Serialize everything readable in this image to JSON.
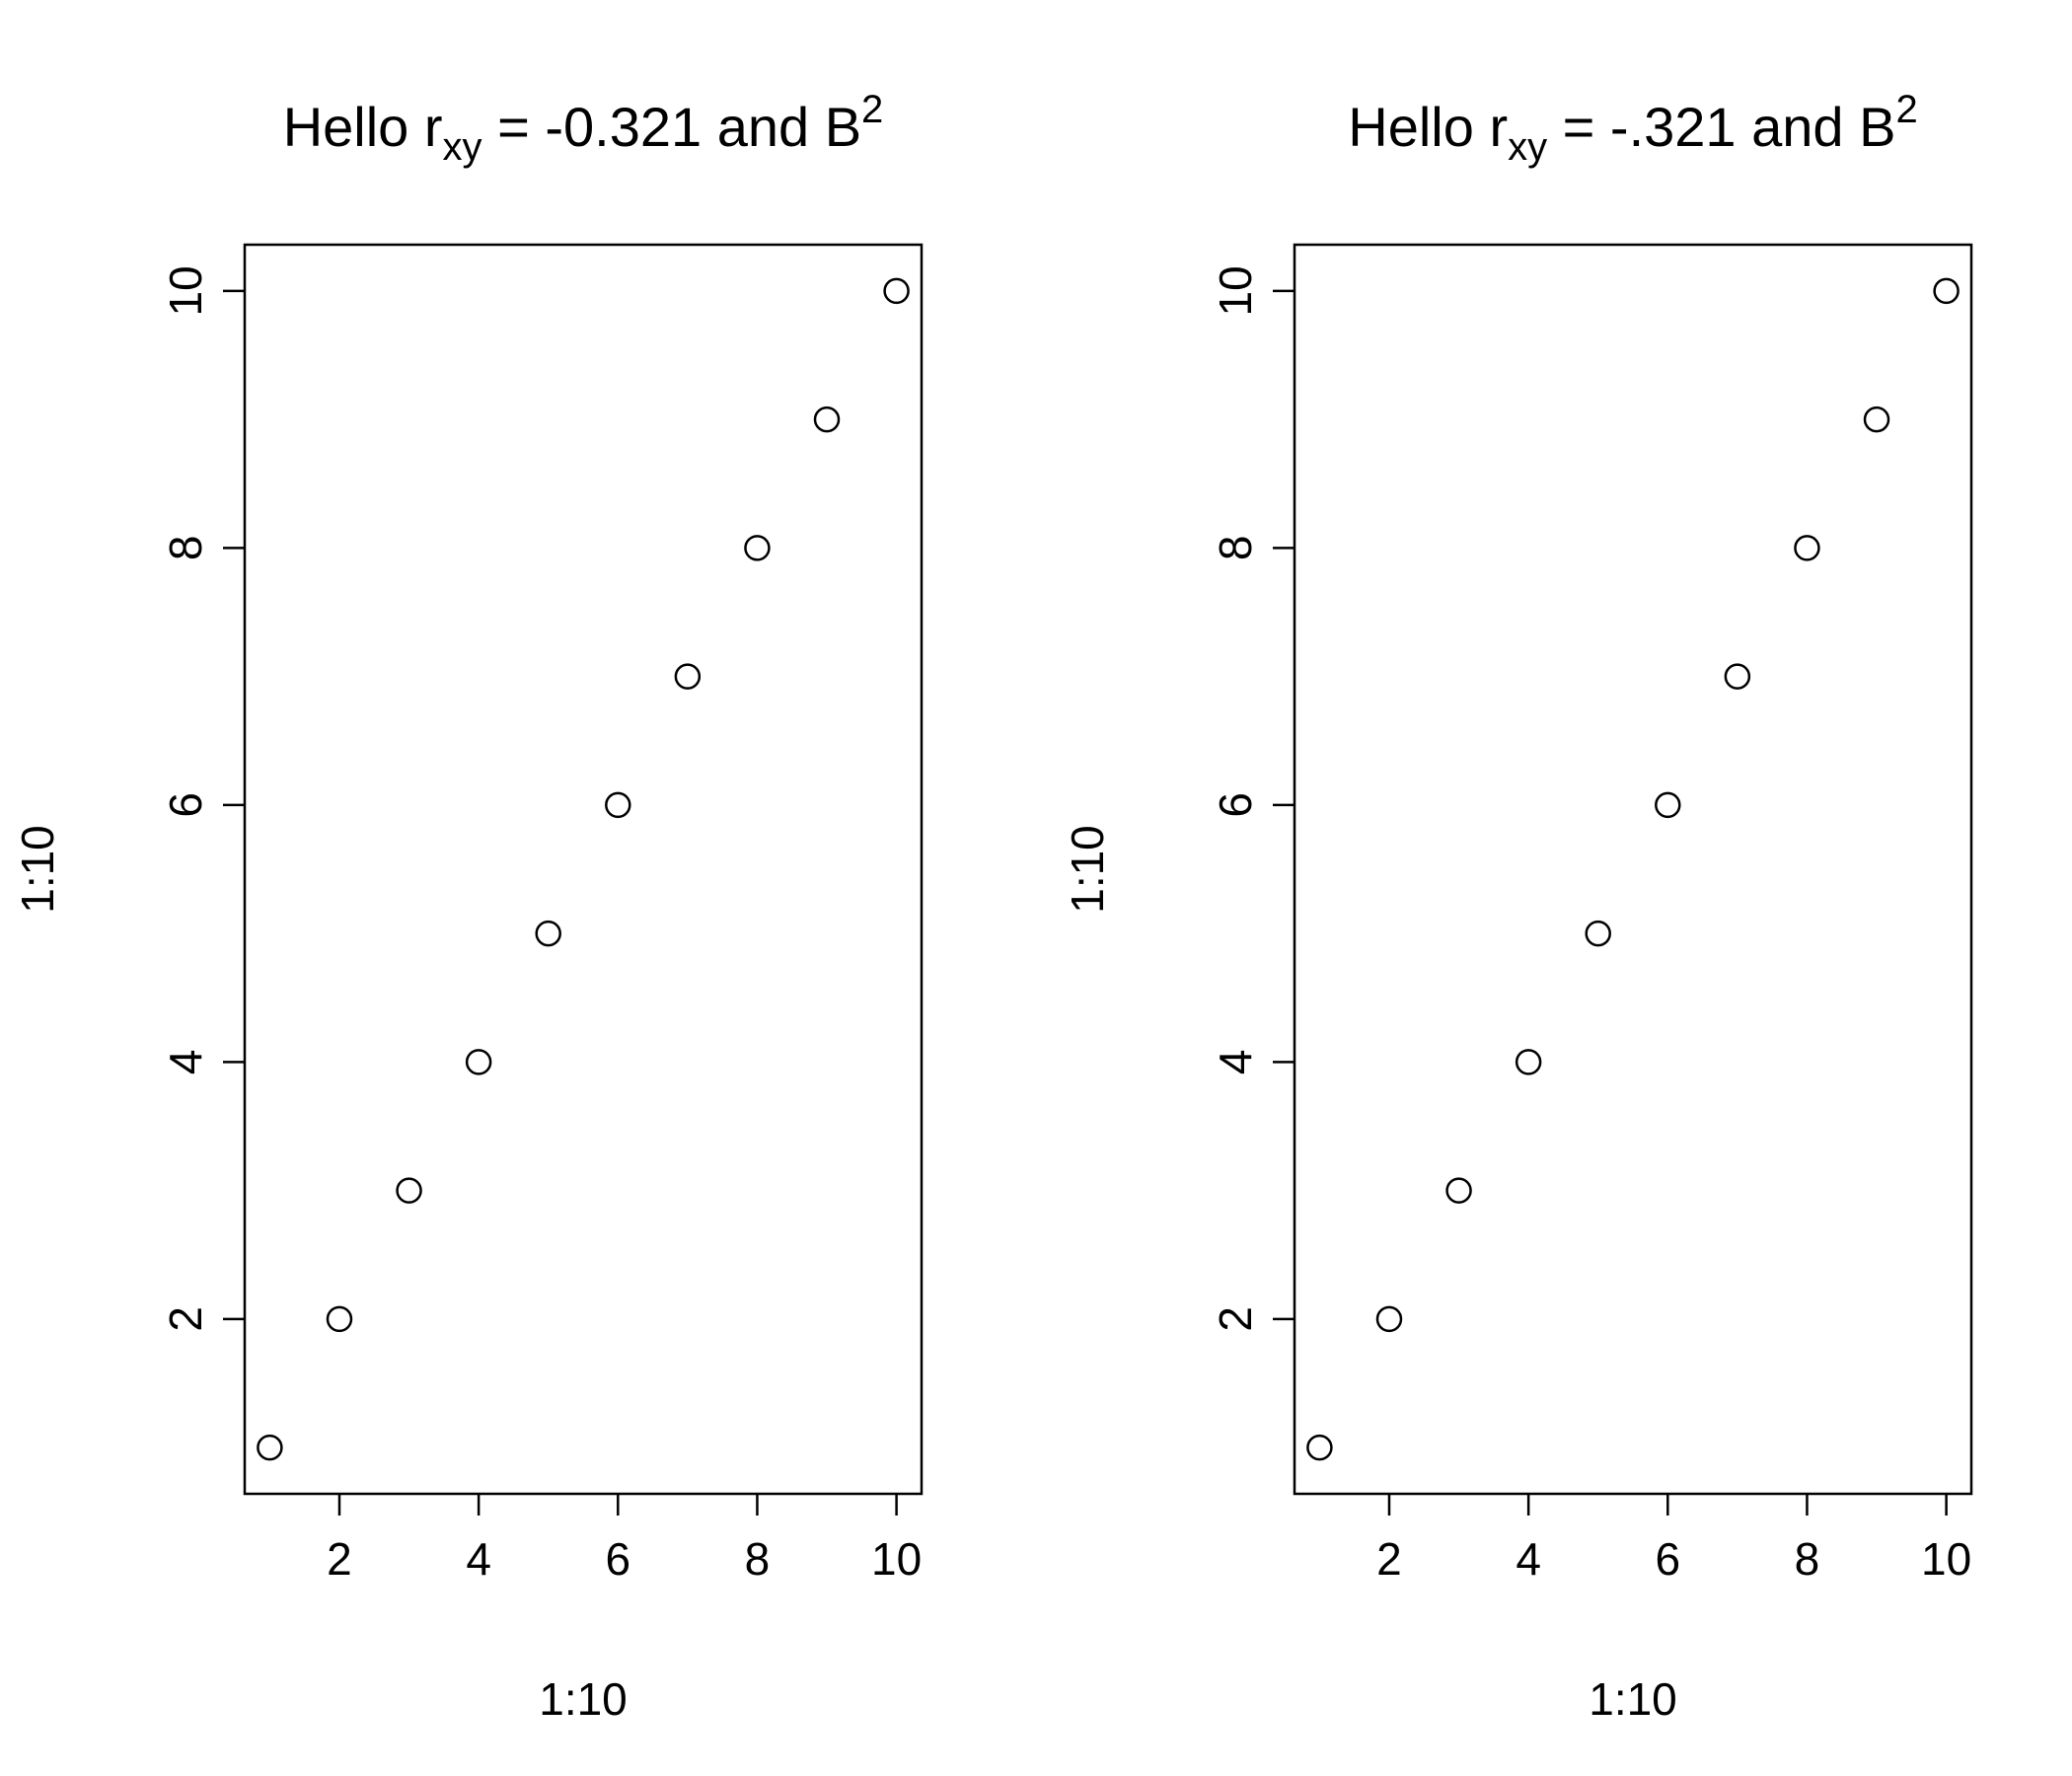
{
  "chart_data": [
    {
      "type": "scatter",
      "title": {
        "main": "Hello r",
        "sub": "xy",
        "mid": " = -0.321 and B",
        "sup": "2"
      },
      "xlabel": "1:10",
      "ylabel": "1:10",
      "x": [
        1,
        2,
        3,
        4,
        5,
        6,
        7,
        8,
        9,
        10
      ],
      "y": [
        1,
        2,
        3,
        4,
        5,
        6,
        7,
        8,
        9,
        10
      ],
      "xlim": [
        0.64,
        10.36
      ],
      "ylim": [
        0.64,
        10.36
      ],
      "xticks": [
        "2",
        "4",
        "6",
        "8",
        "10"
      ],
      "yticks": [
        "2",
        "4",
        "6",
        "8",
        "10"
      ],
      "marker": "open-circle",
      "grid": false
    },
    {
      "type": "scatter",
      "title": {
        "main": "Hello r",
        "sub": "xy",
        "mid": " = -.321 and B",
        "sup": "2"
      },
      "xlabel": "1:10",
      "ylabel": "1:10",
      "x": [
        1,
        2,
        3,
        4,
        5,
        6,
        7,
        8,
        9,
        10
      ],
      "y": [
        1,
        2,
        3,
        4,
        5,
        6,
        7,
        8,
        9,
        10
      ],
      "xlim": [
        0.64,
        10.36
      ],
      "ylim": [
        0.64,
        10.36
      ],
      "xticks": [
        "2",
        "4",
        "6",
        "8",
        "10"
      ],
      "yticks": [
        "2",
        "4",
        "6",
        "8",
        "10"
      ],
      "marker": "open-circle",
      "grid": false
    }
  ]
}
